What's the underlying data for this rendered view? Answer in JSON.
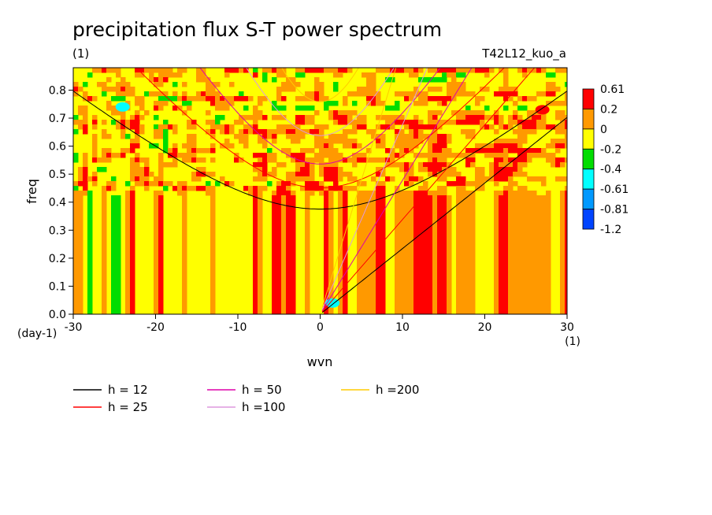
{
  "chart_data": {
    "type": "heatmap",
    "title": "precipitation flux S-T power spectrum",
    "subtitle_left": "(1)",
    "subtitle_right": "T42L12_kuo_a",
    "xlabel": "wvn",
    "ylabel": "freq",
    "x_unit": "(1)",
    "y_unit": "(day-1)",
    "xlim": [
      -30,
      30
    ],
    "ylim": [
      0,
      0.88
    ],
    "x_ticks": [
      -30,
      -20,
      -10,
      0,
      10,
      20,
      30
    ],
    "y_ticks": [
      0,
      0.1,
      0.2,
      0.3,
      0.4,
      0.5,
      0.6,
      0.7,
      0.8
    ],
    "grid": false,
    "legend_position": "bottom",
    "colorbar": {
      "position": "right",
      "levels": [
        "0.61",
        "0.2",
        "0",
        "-0.2",
        "-0.4",
        "-0.61",
        "-0.81",
        "-1.2"
      ],
      "colors": [
        "#ff0000",
        "#ff9900",
        "#ffff00",
        "#00dd00",
        "#00ffff",
        "#0099ff",
        "#0044ff"
      ]
    },
    "field_description_levels": {
      "background": "#ff9900",
      "common": "#ffff00",
      "rare_low": "#00dd00",
      "rare_high": "#ff0000"
    },
    "hot_spots": [
      {
        "x": -24,
        "y": 0.74,
        "color": "#00ffff"
      },
      {
        "x": 1.5,
        "y": 0.04,
        "color": "#00ffff"
      },
      {
        "x": 27,
        "y": 0.73,
        "color": "#ff0000"
      }
    ],
    "series": [
      {
        "name": "h = 12",
        "color": "#000000",
        "h": 12
      },
      {
        "name": "h = 25",
        "color": "#ff0000",
        "h": 25
      },
      {
        "name": "h = 50",
        "color": "#dd00aa",
        "h": 50
      },
      {
        "name": "h =100",
        "color": "#dd99dd",
        "h": 100
      },
      {
        "name": "h =200",
        "color": "#ffcc00",
        "h": 200
      }
    ]
  }
}
